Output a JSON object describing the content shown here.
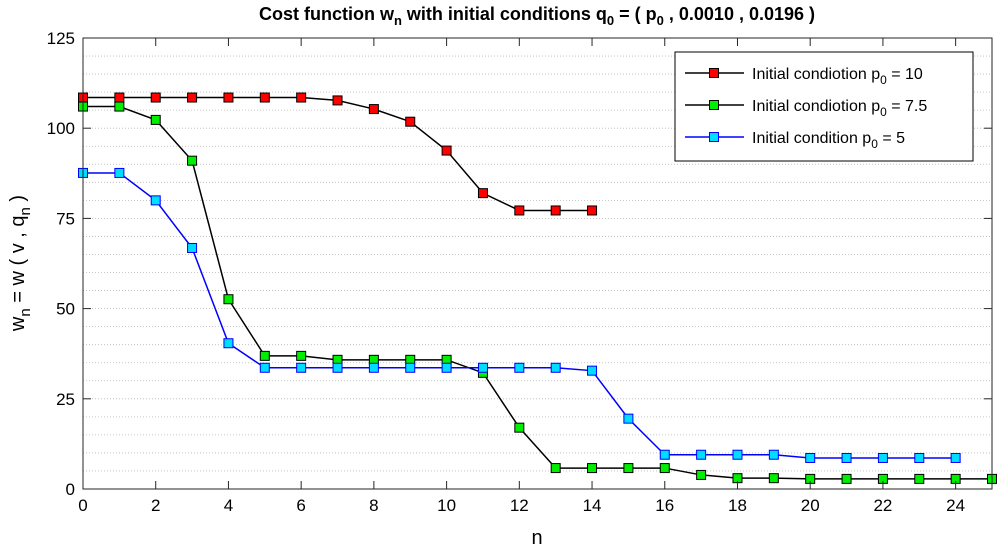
{
  "chart_data": {
    "type": "line",
    "title": {
      "prefix": "Cost function w",
      "prefix_sub": "n",
      "middle": " with initial conditions q",
      "middle_sub": "0",
      "eq": " = ( p",
      "eq_sub": "0",
      "suffix": " , 0.0010 , 0.0196 )"
    },
    "xlabel": "n",
    "ylabel": {
      "a": "w",
      "a_sub": "n",
      "b": " = w ( v , q",
      "b_sub": "n",
      "c": " )"
    },
    "xlim": [
      0,
      25
    ],
    "ylim": [
      0,
      125
    ],
    "xticks": [
      0,
      2,
      4,
      6,
      8,
      10,
      12,
      14,
      16,
      18,
      20,
      22,
      24
    ],
    "yticks": [
      0,
      25,
      50,
      75,
      100,
      125
    ],
    "grid": "horizontal-minor-dotted",
    "legend_position": "top-right",
    "series": [
      {
        "name": "Initial condiotion p0 = 10",
        "legend": {
          "main": "Initial condiotion p",
          "sub": "0",
          "tail": " = 10"
        },
        "line_color": "#000000",
        "marker_color": "#ff0000",
        "x": [
          0,
          1,
          2,
          3,
          4,
          5,
          6,
          7,
          8,
          9,
          10,
          11,
          12,
          13,
          14
        ],
        "y": [
          108.5,
          108.5,
          108.5,
          108.5,
          108.5,
          108.5,
          108.5,
          107.7,
          105.3,
          101.8,
          93.8,
          82.0,
          77.2,
          77.2,
          77.2
        ]
      },
      {
        "name": "Initial condiotion p0 = 7.5",
        "legend": {
          "main": "Initial condiotion p",
          "sub": "0",
          "tail": " = 7.5"
        },
        "line_color": "#000000",
        "marker_color": "#00ee00",
        "x": [
          0,
          1,
          2,
          3,
          4,
          5,
          6,
          7,
          8,
          9,
          10,
          11,
          12,
          13,
          14,
          15,
          16,
          17,
          18,
          19,
          20,
          21,
          22,
          23,
          24,
          25
        ],
        "y": [
          106.0,
          106.0,
          102.3,
          91.0,
          52.6,
          36.9,
          36.9,
          35.8,
          35.8,
          35.8,
          35.8,
          32.2,
          17.0,
          5.8,
          5.8,
          5.8,
          5.8,
          3.9,
          3.0,
          3.0,
          2.8,
          2.8,
          2.8,
          2.8,
          2.8,
          2.8
        ]
      },
      {
        "name": "Initial condition p0 = 5",
        "legend": {
          "main": "Initial condition p",
          "sub": "0",
          "tail": " = 5"
        },
        "line_color": "#0000ff",
        "marker_color": "#00ddff",
        "x": [
          0,
          1,
          2,
          3,
          4,
          5,
          6,
          7,
          8,
          9,
          10,
          11,
          12,
          13,
          14,
          15,
          16,
          17,
          18,
          19,
          20,
          21,
          22,
          23,
          24
        ],
        "y": [
          87.6,
          87.6,
          80.0,
          66.8,
          40.4,
          33.6,
          33.6,
          33.6,
          33.6,
          33.6,
          33.6,
          33.6,
          33.6,
          33.6,
          32.8,
          19.5,
          9.5,
          9.5,
          9.5,
          9.5,
          8.6,
          8.6,
          8.6,
          8.6,
          8.6
        ]
      }
    ]
  }
}
